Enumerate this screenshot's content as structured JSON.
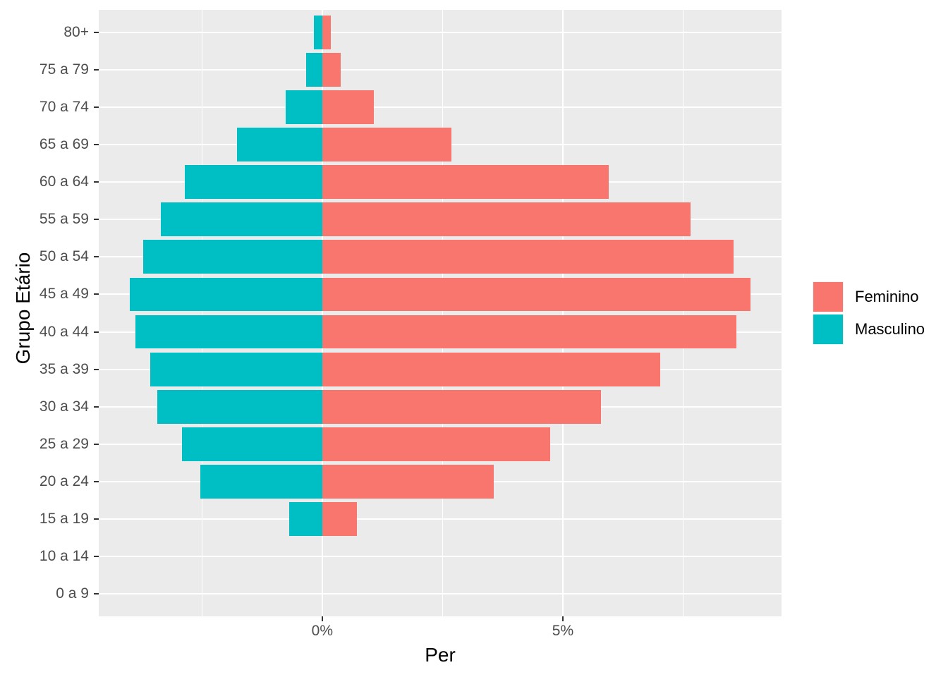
{
  "chart_data": {
    "type": "bar",
    "variant": "population-pyramid",
    "title": "",
    "xlabel": "Per",
    "ylabel": "Grupo Etário",
    "categories": [
      "80+",
      "75 a 79",
      "70 a 74",
      "65 a 69",
      "60 a 64",
      "55 a 59",
      "50 a 54",
      "45 a 49",
      "40 a 44",
      "35 a 39",
      "30 a 34",
      "25 a 29",
      "20 a 24",
      "15 a 19",
      "10 a 14",
      "0 a 9"
    ],
    "series": [
      {
        "name": "Feminino",
        "color": "#F8766D",
        "direction": "right",
        "unit": "percent",
        "values": [
          0.18,
          0.38,
          1.07,
          2.69,
          5.95,
          7.66,
          8.55,
          8.9,
          8.61,
          7.02,
          5.79,
          4.74,
          3.57,
          0.72,
          0,
          0
        ]
      },
      {
        "name": "Masculino",
        "color": "#00BFC4",
        "direction": "left",
        "unit": "percent",
        "values": [
          0.18,
          0.33,
          0.76,
          1.77,
          2.85,
          3.35,
          3.72,
          4.0,
          3.89,
          3.58,
          3.43,
          2.91,
          2.54,
          0.68,
          0,
          0
        ]
      }
    ],
    "x_ticks": [
      {
        "value": 0,
        "label": "0%"
      },
      {
        "value": 5,
        "label": "5%"
      }
    ],
    "x_domain": [
      -4.645,
      9.545
    ],
    "x_gridlines_major": [
      0,
      5
    ],
    "x_gridlines_minor": [
      -2.5,
      2.5,
      7.5
    ],
    "grid": true,
    "legend_position": "right",
    "bar_width_fraction": 0.9,
    "colors": {
      "panel_background": "#EBEBEB",
      "gridline": "#FFFFFF",
      "tick_mark": "#333333",
      "axis_text": "#4D4D4D",
      "axis_title": "#000000"
    }
  }
}
